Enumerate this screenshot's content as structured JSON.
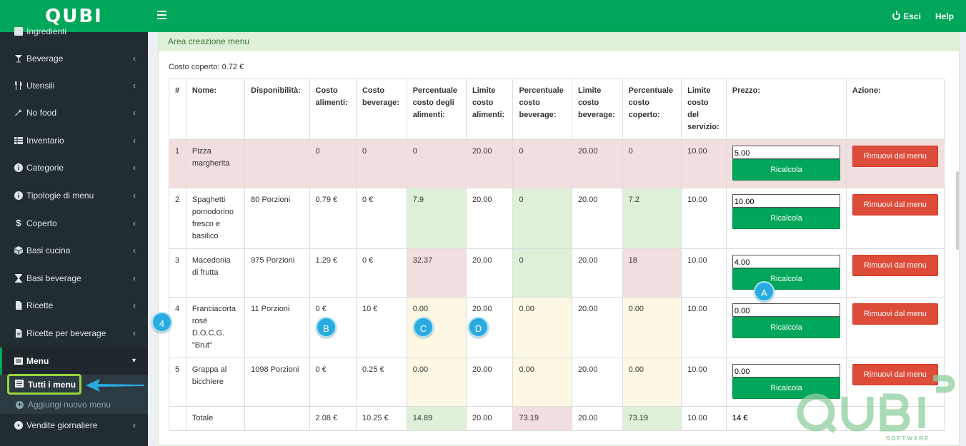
{
  "brand": {
    "name": "QUBI",
    "tagline": "SOFTWARE"
  },
  "topnav": {
    "logout_label": "Esci",
    "help_label": "Help"
  },
  "sidebar": {
    "items": [
      {
        "label": "Ingredienti",
        "icon": "list-icon"
      },
      {
        "label": "Beverage",
        "icon": "cocktail-icon"
      },
      {
        "label": "Utensili",
        "icon": "cutlery-icon"
      },
      {
        "label": "No food",
        "icon": "wrench-icon"
      },
      {
        "label": "Inventario",
        "icon": "table-icon"
      },
      {
        "label": "Categorie",
        "icon": "info-icon"
      },
      {
        "label": "Tipologie di menu",
        "icon": "info-icon"
      },
      {
        "label": "Coperto",
        "icon": "dollar-icon"
      },
      {
        "label": "Basi cucina",
        "icon": "cube-icon"
      },
      {
        "label": "Basi beverage",
        "icon": "hourglass-icon"
      },
      {
        "label": "Ricette",
        "icon": "file-icon"
      },
      {
        "label": "Ricette per beverage",
        "icon": "file-icon"
      },
      {
        "label": "Menu",
        "icon": "list-alt-icon"
      },
      {
        "label": "Vendite giornaliere",
        "icon": "arrow-circle-icon"
      }
    ],
    "submenu": [
      {
        "label": "Tutti i menu",
        "icon": "list-alt-icon"
      },
      {
        "label": "Aggiungi nuovo menu",
        "icon": "plus-circle-icon"
      }
    ]
  },
  "panel": {
    "title": "Area creazione menu",
    "coperto_text": "Costo coperto: 0.72 €"
  },
  "table": {
    "headers": [
      "#",
      "Nome:",
      "Disponibilità:",
      "Costo alimenti:",
      "Costo beverage:",
      "Percentuale costo degli alimenti:",
      "Limite costo alimenti:",
      "Percentuale costo beverage:",
      "Limite costo beverage:",
      "Percentuale costo coperto:",
      "Limite costo del servizio:",
      "Prezzo:",
      "Azione:"
    ],
    "rows": [
      {
        "num": "1",
        "nome": "Pizza margherita",
        "disp": "",
        "costo_alim": "0",
        "costo_bev": "0",
        "perc_alim": "0",
        "lim_alim": "20.00",
        "perc_bev": "0",
        "lim_bev": "20.00",
        "perc_cop": "0",
        "lim_serv": "10.00",
        "prezzo": "5.00"
      },
      {
        "num": "2",
        "nome": "Spaghetti pomodorino fresco e basilico",
        "disp": "80 Porzioni",
        "costo_alim": "0.79 €",
        "costo_bev": "0 €",
        "perc_alim": "7.9",
        "lim_alim": "20.00",
        "perc_bev": "0",
        "lim_bev": "20.00",
        "perc_cop": "7.2",
        "lim_serv": "10.00",
        "prezzo": "10.00"
      },
      {
        "num": "3",
        "nome": "Macedonia di frutta",
        "disp": "975 Porzioni",
        "costo_alim": "1.29 €",
        "costo_bev": "0 €",
        "perc_alim": "32.37",
        "lim_alim": "20.00",
        "perc_bev": "0",
        "lim_bev": "20.00",
        "perc_cop": "18",
        "lim_serv": "10.00",
        "prezzo": "4.00"
      },
      {
        "num": "4",
        "nome": "Franciacorta rosé D.O.C.G. \"Brut\"",
        "disp": "11 Porzioni",
        "costo_alim": "0 €",
        "costo_bev": "10 €",
        "perc_alim": "0.00",
        "lim_alim": "20.00",
        "perc_bev": "0.00",
        "lim_bev": "20.00",
        "perc_cop": "0.00",
        "lim_serv": "10.00",
        "prezzo": "0.00"
      },
      {
        "num": "5",
        "nome": "Grappa al bicchiere",
        "disp": "1098 Porzioni",
        "costo_alim": "0 €",
        "costo_bev": "0.25 €",
        "perc_alim": "0.00",
        "lim_alim": "20.00",
        "perc_bev": "0.00",
        "lim_bev": "20.00",
        "perc_cop": "0.00",
        "lim_serv": "10.00",
        "prezzo": "0.00"
      }
    ],
    "totale": {
      "label": "Totale",
      "costo_alim": "2.08 €",
      "costo_bev": "10.25 €",
      "perc_alim": "14.89",
      "lim_alim": "20.00",
      "perc_bev": "73.19",
      "lim_bev": "20.00",
      "perc_cop": "73.19",
      "lim_serv": "10.00",
      "prezzo": "14 €"
    },
    "recalc_label": "Ricalcola",
    "remove_label": "Rimuovi dal menu"
  },
  "markers": {
    "a": "A",
    "b": "B",
    "c": "C",
    "d": "D",
    "four": "4"
  },
  "colors": {
    "brand_green": "#00a65a",
    "sidebar_bg": "#222d32",
    "danger": "#dd4b39",
    "row_red": "#f2dede",
    "cell_green": "#dff0d8",
    "cell_yellow": "#fcf8e3",
    "marker_blue": "#29abe2",
    "highlight_lime": "#9cd43d"
  }
}
